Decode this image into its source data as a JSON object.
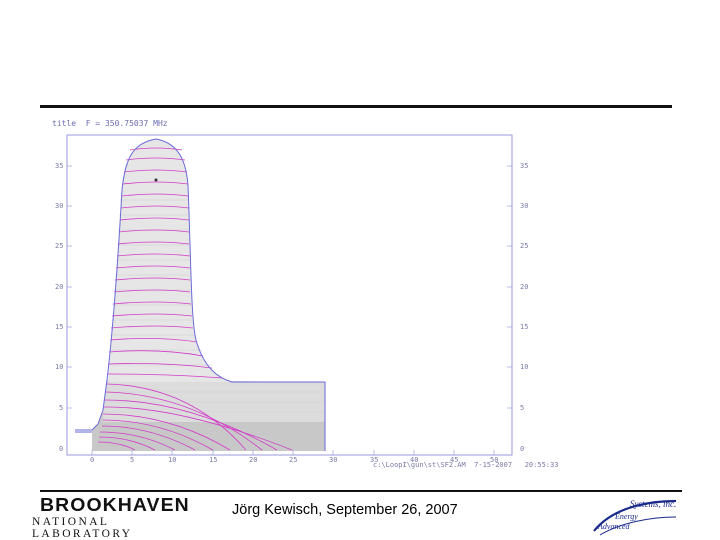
{
  "slide": {
    "footer_text": "Jörg Kewisch, September 26, 2007",
    "logo_left": {
      "line1": "BROOKHAVEN",
      "line2": "NATIONAL LABORATORY"
    },
    "logo_right": {
      "word1": "Systems, inc.",
      "word2": "Energy",
      "word3": "Advanced"
    }
  },
  "plot": {
    "title": "title  F = 350.75037 MHz",
    "footer_info": "c:\\LoopI\\gun\\st\\SF2.AM  7-15-2007   20:55:33",
    "y_ticks": [
      "35",
      "30",
      "25",
      "20",
      "15",
      "10",
      "5",
      "0"
    ],
    "x_ticks": [
      "0",
      "5",
      "10",
      "15",
      "20",
      "25",
      "30",
      "35",
      "40",
      "45",
      "50"
    ],
    "colors": {
      "frame": "#9a9adc",
      "field_lines": "#d23cc8",
      "boundary": "#6a6ad8",
      "fill": "#d4d4d4",
      "fill_upper": "#e4e4e4"
    }
  }
}
